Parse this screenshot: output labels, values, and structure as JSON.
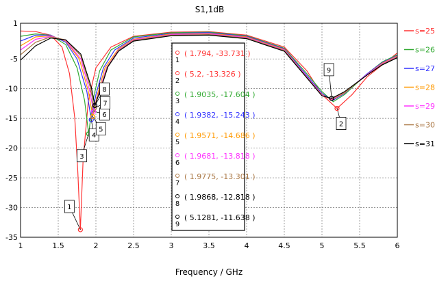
{
  "chart_data": {
    "type": "line",
    "title": "S1,1dB",
    "xlabel": "Frequency / GHz",
    "ylabel": "",
    "xlim": [
      1,
      6
    ],
    "ylim": [
      -35,
      1
    ],
    "x_ticks": [
      "1",
      "1.5",
      "2",
      "2.5",
      "3",
      "3.5",
      "4",
      "4.5",
      "5",
      "5.5",
      "6"
    ],
    "y_ticks": [
      "1",
      "-5",
      "-10",
      "-15",
      "-20",
      "-25",
      "-30",
      "-35"
    ],
    "grid": true,
    "legend_position": "right",
    "series": [
      {
        "name": "s=25",
        "color": "#ff3333",
        "points": [
          [
            1,
            -0.3
          ],
          [
            1.2,
            -0.4
          ],
          [
            1.4,
            -1.0
          ],
          [
            1.55,
            -3.0
          ],
          [
            1.65,
            -7.5
          ],
          [
            1.72,
            -15.0
          ],
          [
            1.76,
            -24.0
          ],
          [
            1.794,
            -33.731
          ],
          [
            1.83,
            -22.0
          ],
          [
            1.9,
            -12.0
          ],
          [
            2.0,
            -6.5
          ],
          [
            2.2,
            -3.0
          ],
          [
            2.5,
            -1.2
          ],
          [
            3.0,
            -0.5
          ],
          [
            3.5,
            -0.4
          ],
          [
            4.0,
            -1.0
          ],
          [
            4.5,
            -3.0
          ],
          [
            4.8,
            -7.0
          ],
          [
            5.0,
            -11.0
          ],
          [
            5.2,
            -13.326
          ],
          [
            5.4,
            -11.0
          ],
          [
            5.6,
            -8.0
          ],
          [
            5.8,
            -6.0
          ],
          [
            6,
            -4.0
          ]
        ]
      },
      {
        "name": "s=26",
        "color": "#33aa33",
        "points": [
          [
            1,
            -1.2
          ],
          [
            1.2,
            -0.8
          ],
          [
            1.4,
            -1.0
          ],
          [
            1.6,
            -2.6
          ],
          [
            1.75,
            -6.5
          ],
          [
            1.85,
            -12.0
          ],
          [
            1.9035,
            -17.604
          ],
          [
            1.96,
            -12.0
          ],
          [
            2.05,
            -7.0
          ],
          [
            2.2,
            -3.5
          ],
          [
            2.5,
            -1.3
          ],
          [
            3.0,
            -0.6
          ],
          [
            3.5,
            -0.5
          ],
          [
            4.0,
            -1.1
          ],
          [
            4.5,
            -3.2
          ],
          [
            4.8,
            -7.5
          ],
          [
            5.0,
            -10.5
          ],
          [
            5.15,
            -12.2
          ],
          [
            5.3,
            -11.0
          ],
          [
            5.6,
            -7.5
          ],
          [
            5.8,
            -5.5
          ],
          [
            6,
            -4.3
          ]
        ]
      },
      {
        "name": "s=27",
        "color": "#3333ff",
        "points": [
          [
            1,
            -2.0
          ],
          [
            1.2,
            -1.0
          ],
          [
            1.4,
            -1.0
          ],
          [
            1.6,
            -2.2
          ],
          [
            1.75,
            -5.0
          ],
          [
            1.88,
            -10.5
          ],
          [
            1.9382,
            -15.243
          ],
          [
            2.0,
            -11.0
          ],
          [
            2.1,
            -6.5
          ],
          [
            2.25,
            -3.5
          ],
          [
            2.5,
            -1.5
          ],
          [
            3.0,
            -0.7
          ],
          [
            3.5,
            -0.6
          ],
          [
            4.0,
            -1.2
          ],
          [
            4.5,
            -3.3
          ],
          [
            4.8,
            -7.8
          ],
          [
            5.0,
            -10.8
          ],
          [
            5.14,
            -12.0
          ],
          [
            5.3,
            -10.8
          ],
          [
            5.6,
            -7.5
          ],
          [
            5.8,
            -5.6
          ],
          [
            6,
            -4.4
          ]
        ]
      },
      {
        "name": "s=28",
        "color": "#ff9900",
        "points": [
          [
            1,
            -2.8
          ],
          [
            1.2,
            -1.3
          ],
          [
            1.4,
            -1.1
          ],
          [
            1.6,
            -2.0
          ],
          [
            1.78,
            -5.0
          ],
          [
            1.9,
            -10.5
          ],
          [
            1.9571,
            -14.686
          ],
          [
            2.02,
            -11.0
          ],
          [
            2.12,
            -6.5
          ],
          [
            2.3,
            -3.3
          ],
          [
            2.5,
            -1.7
          ],
          [
            3.0,
            -0.8
          ],
          [
            3.5,
            -0.7
          ],
          [
            4.0,
            -1.3
          ],
          [
            4.5,
            -3.4
          ],
          [
            4.8,
            -8.0
          ],
          [
            5.0,
            -11.0
          ],
          [
            5.13,
            -11.9
          ],
          [
            5.3,
            -10.7
          ],
          [
            5.6,
            -7.6
          ],
          [
            5.8,
            -5.7
          ],
          [
            6,
            -4.5
          ]
        ]
      },
      {
        "name": "s=29",
        "color": "#ff33ff",
        "points": [
          [
            1,
            -3.5
          ],
          [
            1.2,
            -1.7
          ],
          [
            1.4,
            -1.2
          ],
          [
            1.6,
            -1.9
          ],
          [
            1.8,
            -5.0
          ],
          [
            1.92,
            -10.5
          ],
          [
            1.9681,
            -13.818
          ],
          [
            2.03,
            -11.0
          ],
          [
            2.14,
            -6.5
          ],
          [
            2.3,
            -3.5
          ],
          [
            2.5,
            -1.8
          ],
          [
            3.0,
            -0.9
          ],
          [
            3.5,
            -0.8
          ],
          [
            4.0,
            -1.4
          ],
          [
            4.5,
            -3.5
          ],
          [
            4.8,
            -8.0
          ],
          [
            5.0,
            -11.1
          ],
          [
            5.13,
            -11.8
          ],
          [
            5.3,
            -10.6
          ],
          [
            5.6,
            -7.6
          ],
          [
            5.8,
            -5.8
          ],
          [
            6,
            -4.6
          ]
        ]
      },
      {
        "name": "s=30",
        "color": "#aa7744",
        "points": [
          [
            1,
            -4.3
          ],
          [
            1.2,
            -2.2
          ],
          [
            1.4,
            -1.3
          ],
          [
            1.6,
            -1.8
          ],
          [
            1.8,
            -4.5
          ],
          [
            1.93,
            -10.0
          ],
          [
            1.9775,
            -13.301
          ],
          [
            2.04,
            -10.8
          ],
          [
            2.15,
            -6.4
          ],
          [
            2.3,
            -3.6
          ],
          [
            2.5,
            -1.9
          ],
          [
            3.0,
            -1.0
          ],
          [
            3.5,
            -0.9
          ],
          [
            4.0,
            -1.5
          ],
          [
            4.5,
            -3.6
          ],
          [
            4.8,
            -8.1
          ],
          [
            5.0,
            -11.2
          ],
          [
            5.13,
            -11.7
          ],
          [
            5.3,
            -10.6
          ],
          [
            5.6,
            -7.7
          ],
          [
            5.8,
            -5.9
          ],
          [
            6,
            -4.7
          ]
        ]
      },
      {
        "name": "s=31",
        "color": "#000000",
        "points": [
          [
            1,
            -5.2
          ],
          [
            1.2,
            -2.8
          ],
          [
            1.4,
            -1.5
          ],
          [
            1.6,
            -1.8
          ],
          [
            1.8,
            -4.2
          ],
          [
            1.94,
            -9.8
          ],
          [
            1.9868,
            -12.818
          ],
          [
            2.05,
            -10.6
          ],
          [
            2.16,
            -6.3
          ],
          [
            2.3,
            -3.7
          ],
          [
            2.5,
            -2.0
          ],
          [
            3.0,
            -1.1
          ],
          [
            3.5,
            -1.0
          ],
          [
            4.0,
            -1.6
          ],
          [
            4.5,
            -3.7
          ],
          [
            4.8,
            -8.2
          ],
          [
            5.0,
            -11.2
          ],
          [
            5.1281,
            -11.638
          ],
          [
            5.3,
            -10.5
          ],
          [
            5.6,
            -7.7
          ],
          [
            5.8,
            -6.0
          ],
          [
            6,
            -4.8
          ]
        ]
      }
    ],
    "markers": [
      {
        "id": "1",
        "x": 1.794,
        "y": -33.731,
        "label": "( 1.794, -33.731 )",
        "color": "#ff3333"
      },
      {
        "id": "2",
        "x": 5.2,
        "y": -13.326,
        "label": "( 5.2, -13.326 )",
        "color": "#ff3333"
      },
      {
        "id": "3",
        "x": 1.9035,
        "y": -17.604,
        "label": "( 1.9035, -17.604 )",
        "color": "#33aa33"
      },
      {
        "id": "4",
        "x": 1.9382,
        "y": -15.243,
        "label": "( 1.9382, -15.243 )",
        "color": "#3333ff"
      },
      {
        "id": "5",
        "x": 1.9571,
        "y": -14.686,
        "label": "( 1.9571, -14.686 )",
        "color": "#ff9900"
      },
      {
        "id": "6",
        "x": 1.9681,
        "y": -13.818,
        "label": "( 1.9681, -13.818 )",
        "color": "#ff33ff"
      },
      {
        "id": "7",
        "x": 1.9775,
        "y": -13.301,
        "label": "( 1.9775, -13.301 )",
        "color": "#aa7744"
      },
      {
        "id": "8",
        "x": 1.9868,
        "y": -12.818,
        "label": "( 1.9868, -12.818 )",
        "color": "#000000"
      },
      {
        "id": "9",
        "x": 5.1281,
        "y": -11.638,
        "label": "( 5.1281, -11.638 )",
        "color": "#000000"
      }
    ]
  }
}
